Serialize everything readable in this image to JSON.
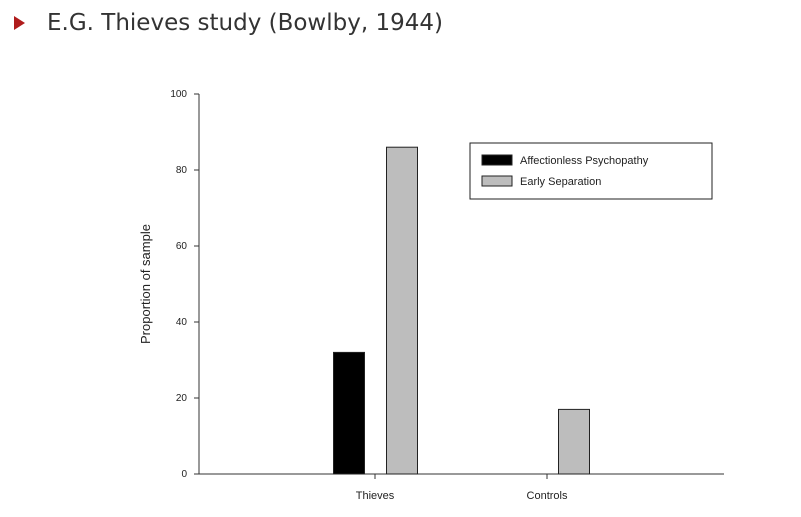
{
  "slide": {
    "title": "E.G. Thieves study (Bowlby, 1944)",
    "bullet_color": "#b01c1c"
  },
  "chart_data": {
    "type": "bar",
    "categories": [
      "Thieves",
      "Controls"
    ],
    "series": [
      {
        "name": "Affectionless Psychopathy",
        "values": [
          32,
          0
        ],
        "color": "#000000"
      },
      {
        "name": "Early Separation",
        "values": [
          86,
          17
        ],
        "color": "#bdbdbd"
      }
    ],
    "ylabel": "Proportion of sample",
    "xlabel": "",
    "ylim": [
      0,
      100
    ],
    "yticks": [
      0,
      20,
      40,
      60,
      80,
      100
    ],
    "grid": false,
    "legend_position": "top-right"
  }
}
